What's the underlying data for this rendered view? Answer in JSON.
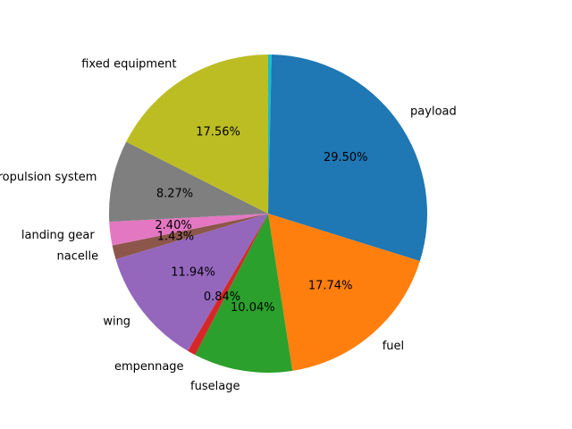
{
  "chart_data": {
    "type": "pie",
    "start_angle_deg": 90,
    "direction": "clockwise",
    "legend": "none",
    "slices": [
      {
        "label": "unlabeled",
        "value": 0.35,
        "pct_label": "",
        "color": "#17becf",
        "show_label": false
      },
      {
        "label": "payload",
        "value": 29.5,
        "pct_label": "29.50%",
        "color": "#1f77b4",
        "show_label": true
      },
      {
        "label": "fuel",
        "value": 17.74,
        "pct_label": "17.74%",
        "color": "#ff7f0e",
        "show_label": true
      },
      {
        "label": "fuselage",
        "value": 10.04,
        "pct_label": "10.04%",
        "color": "#2ca02c",
        "show_label": true
      },
      {
        "label": "empennage",
        "value": 0.84,
        "pct_label": "0.84%",
        "color": "#d62728",
        "show_label": true
      },
      {
        "label": "wing",
        "value": 11.94,
        "pct_label": "11.94%",
        "color": "#9467bd",
        "show_label": true
      },
      {
        "label": "nacelle",
        "value": 1.43,
        "pct_label": "1.43%",
        "color": "#8c564b",
        "show_label": true
      },
      {
        "label": "landing gear",
        "value": 2.4,
        "pct_label": "2.40%",
        "color": "#e377c2",
        "show_label": true
      },
      {
        "label": "propulsion system",
        "value": 8.27,
        "pct_label": "8.27%",
        "color": "#7f7f7f",
        "show_label": true
      },
      {
        "label": "fixed equipment",
        "value": 17.56,
        "pct_label": "17.56%",
        "color": "#bcbd22",
        "show_label": true
      }
    ]
  }
}
